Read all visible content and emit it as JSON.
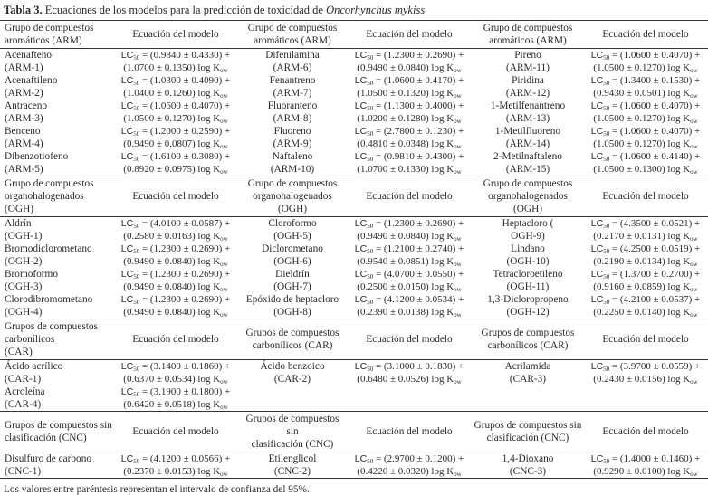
{
  "title": {
    "label": "Tabla 3.",
    "text": "Ecuaciones de los modelos para la predicción de toxicidad de ",
    "species": "Oncorhynchus mykiss"
  },
  "equation": {
    "lc": "LC",
    "lc_sub": "50",
    "k": "K",
    "k_sub": "ow"
  },
  "sections": [
    {
      "group_headers": [
        [
          "Grupo de compuestos",
          "aromáticos (ARM)"
        ],
        [
          "Grupo de compuestos",
          "aromáticos (ARM)"
        ],
        [
          "Grupo de compuestos",
          "aromáticos (ARM)"
        ]
      ],
      "eq_header": "Ecuación del modelo",
      "rows": [
        [
          {
            "name": "Acenafteno",
            "code": "(ARM-1)",
            "eq1": "= (0.9840 ± 0.4330) +",
            "eq2": "(1.0700 ± 0.1350) log"
          },
          {
            "name": "Difenilamina",
            "code": "(ARM-6)",
            "eq1": "= (1.2300 ± 0.2690) +",
            "eq2": "(0.9490 ± 0.0840) log"
          },
          {
            "name": "Pireno",
            "code": "(ARM-11)",
            "eq1": "= (1.0600 ± 0.4070) +",
            "eq2": "(1.0500 ± 0.1270) log"
          }
        ],
        [
          {
            "name": "Acenaftileno",
            "code": "(ARM-2)",
            "eq1": "= (1.0300 ± 0.4090) +",
            "eq2": "(1.0400 ± 0.1260) log"
          },
          {
            "name": "Fenantreno",
            "code": "(ARM-7)",
            "eq1": "= (1.0600 ± 0.4170) +",
            "eq2": "(1.0500 ± 0.1320) log"
          },
          {
            "name": "Piridina",
            "code": "(ARM-12)",
            "eq1": "= (1.3400 ± 0.1530) +",
            "eq2": "(0.9430 ± 0.0501) log"
          }
        ],
        [
          {
            "name": "Antraceno",
            "code": "(ARM-3)",
            "eq1": "= (1.0600 ± 0.4070) +",
            "eq2": "(1.0500 ± 0.1270) log"
          },
          {
            "name": "Fluoranteno",
            "code": "(ARM-8)",
            "eq1": "= (1.1300 ± 0.4000) +",
            "eq2": "(1.0200 ± 0.1280) log"
          },
          {
            "name": "1-Metilfenantreno",
            "code": "(ARM-13)",
            "eq1": "= (1.0600 ± 0.4070) +",
            "eq2": "(1.0500 ± 0.1270) log"
          }
        ],
        [
          {
            "name": "Benceno",
            "code": "(ARM-4)",
            "eq1": "= (1.2000 ± 0.2590) +",
            "eq2": "(0.9490 ± 0.0807) log"
          },
          {
            "name": "Fluoreno",
            "code": "(ARM-9)",
            "eq1": "= (2.7800 ± 0.1230) +",
            "eq2": "(0.4810 ± 0.0348) log"
          },
          {
            "name": "1-Metilfluoreno",
            "code": "(ARM-14)",
            "eq1": "= (1.0600 ± 0.4070) +",
            "eq2": "(1.0500 ± 0.1270) log"
          }
        ],
        [
          {
            "name": "Dibenzotiofeno",
            "code": "(ARM-5)",
            "eq1": "= (1.6100 ± 0.3080) +",
            "eq2": "(0.8920 ± 0.0975) log"
          },
          {
            "name": "Naftaleno",
            "code": "(ARM-10)",
            "eq1": "= (0.9810 ± 0.4300) +",
            "eq2": "(1.0700 ± 0.1330) log"
          },
          {
            "name": "2-Metilnaftaleno",
            "code": "(ARM-15)",
            "eq1": "= (1.0600 ± 0.4140) +",
            "eq2": "(1.0500 ± 0.1300) log"
          }
        ]
      ]
    },
    {
      "group_headers": [
        [
          "Grupo de compuestos",
          "organohalogenados (OGH)"
        ],
        [
          "Grupo de compuestos",
          "organohalogenados (OGH)"
        ],
        [
          "Grupo de compuestos",
          "organohalogenados (OGH)"
        ]
      ],
      "eq_header": "Ecuación del modelo",
      "rows": [
        [
          {
            "name": "Aldrín",
            "code": "(OGH-1)",
            "eq1": "= (4.0100 ± 0.0587) +",
            "eq2": "(0.2580 ± 0.0163) log"
          },
          {
            "name": "Cloroformo",
            "code": "(OGH-5)",
            "eq1": "= (1.2300 ± 0.2690) +",
            "eq2": "(0.9490 ± 0.0840) log"
          },
          {
            "name": "Heptacloro (",
            "code": "OGH-9)",
            "eq1": "= (4.3500 ± 0.0521) +",
            "eq2": "(0.2170 ± 0.0131) log"
          }
        ],
        [
          {
            "name": "Bromodiclorometano",
            "code": "(OGH-2)",
            "eq1": "= (1.2300 ± 0.2690) +",
            "eq2": "(0.9490 ± 0.0840) log"
          },
          {
            "name": "Diclorometano",
            "code": "(OGH-6)",
            "eq1": "= (1.2100 ± 0.2740) +",
            "eq2": "(0.9540 ± 0.0851) log"
          },
          {
            "name": "Lindano",
            "code": "(OGH-10)",
            "eq1": "= (4.2500 ± 0.0519) +",
            "eq2": "(0.2190 ± 0.0134) log"
          }
        ],
        [
          {
            "name": "Bromoformo",
            "code": "(OGH-3)",
            "eq1": "= (1.2300 ± 0.2690) +",
            "eq2": "(0.9490 ± 0.0840) log"
          },
          {
            "name": "Dieldrín",
            "code": "(OGH-7)",
            "eq1": "= (4.0700 ± 0.0550) +",
            "eq2": "(0.2500 ± 0.0150) log"
          },
          {
            "name": "Tetracloroetileno",
            "code": "(OGH-11)",
            "eq1": "= (1.3700 ± 0.2700) +",
            "eq2": "(0.9160 ± 0.0859) log"
          }
        ],
        [
          {
            "name": "Clorodibromometano",
            "code": "(OGH-4)",
            "eq1": "= (1.2300 ± 0.2690) +",
            "eq2": "(0.9490 ± 0.0840) log"
          },
          {
            "name": "Epóxido de heptacloro",
            "code": "(OGH-8)",
            "eq1": "= (4.1200 ± 0.0534) +",
            "eq2": "(0.2390 ± 0.0138) log"
          },
          {
            "name": "1,3-Dicloropropeno",
            "code": "(OGH-12)",
            "eq1": "= (4.2100 ± 0.0537) +",
            "eq2": "(0.2250 ± 0.0140) log"
          }
        ]
      ]
    },
    {
      "group_headers": [
        [
          "Grupos de compuestos",
          "carbonílicos",
          "(CAR)"
        ],
        [
          "Grupos de compuestos",
          "carbonílicos (CAR)"
        ],
        [
          "Grupos de compuestos",
          "carbonílicos (CAR)"
        ]
      ],
      "eq_header": "Ecuación del modelo",
      "rows": [
        [
          {
            "name": "Ácido acrílico",
            "code": "(CAR-1)",
            "eq1": "= (3.1400 ± 0.1860) +",
            "eq2": "(0.6370 ± 0.0534) log"
          },
          {
            "name": "Ácido benzoico",
            "code": "(CAR-2)",
            "eq1": "= (3.1000 ± 0.1830) +",
            "eq2": "(0.6480 ± 0.0526) log"
          },
          {
            "name": "Acrilamida",
            "code": "(CAR-3)",
            "eq1": "= (3.9700 ± 0.0559) +",
            "eq2": "(0.2430 ± 0.0156) log"
          }
        ],
        [
          {
            "name": "Acroleína",
            "code": "(CAR-4)",
            "eq1": "= (3.1900 ± 0.1800) +",
            "eq2": "(0.6420 ± 0.0518) log"
          },
          null,
          null
        ]
      ]
    },
    {
      "group_headers": [
        [
          "Grupos de compuestos sin",
          "clasificación (CNC)"
        ],
        [
          "Grupos de compuestos sin",
          "clasificación (CNC)"
        ],
        [
          "Grupos de compuestos sin",
          "clasificación (CNC)"
        ]
      ],
      "eq_header": "Ecuación del modelo",
      "rows": [
        [
          {
            "name": "Disulfuro de carbono",
            "code": "(CNC-1)",
            "eq1": "= (4.1200 ± 0.0566) +",
            "eq2": "(0.2370 ± 0.0153) log"
          },
          {
            "name": "Etilenglicol",
            "code": "(CNC-2)",
            "eq1": "= (2.9700 ± 0.1200) +",
            "eq2": "(0.4220 ± 0.0320) log"
          },
          {
            "name": "1,4-Dioxano",
            "code": "(CNC-3)",
            "eq1": "= (1.4000 ± 0.1460) +",
            "eq2": "(0.9290 ± 0.0100) log"
          }
        ]
      ]
    }
  ],
  "footnote": "Los valores entre paréntesis representan el intervalo de confianza del 95%."
}
